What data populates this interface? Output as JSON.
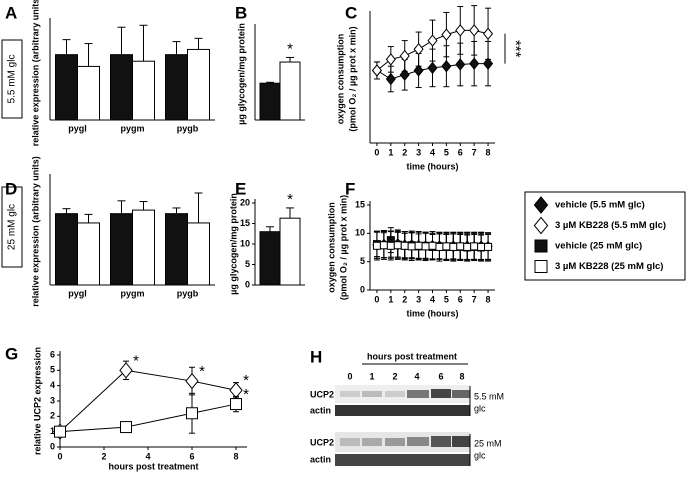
{
  "chart_data": [
    {
      "panel": "A",
      "type": "bar",
      "ylabel": "relative expression (arbitrary units)",
      "categories": [
        "pygl",
        "pygm",
        "pygb"
      ],
      "ylim": [
        0,
        1.5
      ],
      "series": [
        {
          "color": "#111111",
          "values": [
            1.0,
            1.0,
            1.0
          ],
          "errors": [
            0.23,
            0.42,
            0.2
          ]
        },
        {
          "color": "#ffffff",
          "values": [
            0.82,
            0.9,
            1.08
          ],
          "errors": [
            0.35,
            0.55,
            0.17
          ]
        }
      ]
    },
    {
      "panel": "B",
      "type": "bar",
      "ylabel": "µg glycogen/mg protein",
      "categories": [
        null
      ],
      "ylim": [
        0,
        100
      ],
      "series": [
        {
          "color": "#111111",
          "values": [
            40
          ],
          "errors": [
            1
          ]
        },
        {
          "color": "#ffffff",
          "values": [
            63
          ],
          "errors": [
            5
          ],
          "annotations": [
            "*"
          ]
        }
      ]
    },
    {
      "panel": "C",
      "type": "line",
      "ylabel": [
        "oxygen consumption",
        "(pmol O₂ / µg prot x min)"
      ],
      "xlabel": "time (hours)",
      "x": [
        0,
        1,
        2,
        3,
        4,
        5,
        6,
        7,
        8
      ],
      "xlim": [
        -0.5,
        8.5
      ],
      "xticks": [
        0,
        1,
        2,
        3,
        4,
        5,
        6,
        7,
        8
      ],
      "ylim": [
        0,
        15
      ],
      "annotation": "***",
      "series": [
        {
          "marker": "diamond",
          "color": "#111111",
          "values": [
            8.5,
            7.5,
            8.0,
            8.5,
            8.8,
            9.0,
            9.2,
            9.3,
            9.3
          ],
          "errors": [
            1.0,
            1.5,
            1.8,
            2.0,
            2.2,
            2.4,
            2.5,
            2.6,
            2.6
          ]
        },
        {
          "marker": "diamond",
          "color": "#ffffff",
          "values": [
            8.5,
            9.8,
            10.2,
            11.0,
            12.0,
            12.7,
            13.2,
            13.2,
            12.8
          ],
          "errors": [
            1.0,
            1.5,
            1.8,
            2.0,
            2.4,
            2.6,
            2.8,
            2.9,
            3.0
          ]
        }
      ]
    },
    {
      "panel": "D",
      "type": "bar",
      "ylabel": "relative expression (arbitrary units)",
      "categories": [
        "pygl",
        "pygm",
        "pygb"
      ],
      "ylim": [
        0,
        1.5
      ],
      "series": [
        {
          "color": "#111111",
          "values": [
            1.0,
            1.0,
            1.0
          ],
          "errors": [
            0.07,
            0.18,
            0.08
          ]
        },
        {
          "color": "#ffffff",
          "values": [
            0.87,
            1.05,
            0.87
          ],
          "errors": [
            0.12,
            0.12,
            0.42
          ]
        }
      ]
    },
    {
      "panel": "E",
      "type": "bar",
      "ylabel": "µg glycogen/mg protein",
      "categories": [
        null
      ],
      "ylim": [
        0,
        20
      ],
      "yticks": [
        0,
        5,
        10,
        15,
        20
      ],
      "series": [
        {
          "color": "#111111",
          "values": [
            13
          ],
          "errors": [
            1.2
          ]
        },
        {
          "color": "#ffffff",
          "values": [
            16.3
          ],
          "errors": [
            2.5
          ],
          "annotations": [
            "*"
          ]
        }
      ]
    },
    {
      "panel": "F",
      "type": "line",
      "ylabel": [
        "oxygen consumption",
        "(pmol O₂ / µg prot x min)"
      ],
      "xlabel": "time (hours)",
      "x": [
        0,
        0.5,
        1,
        1.5,
        2,
        2.5,
        3,
        3.5,
        4,
        4.5,
        5,
        5.5,
        6,
        6.5,
        7,
        7.5,
        8
      ],
      "xlim": [
        -0.5,
        8.5
      ],
      "xticks": [
        0,
        1,
        2,
        3,
        4,
        5,
        6,
        7,
        8
      ],
      "ylim": [
        0,
        15
      ],
      "yticks": [
        0,
        5,
        10,
        15
      ],
      "legend": "right",
      "series": [
        {
          "name": "vehicle (5.5 mM glc)",
          "marker": "diamond",
          "color": "#111111",
          "values": [
            7.9,
            8.0,
            8.1,
            7.9,
            8.0,
            7.8,
            7.9,
            7.8,
            7.7,
            7.8,
            7.7,
            7.6,
            7.7,
            7.6,
            7.7,
            7.6,
            7.7
          ],
          "errors": [
            2.3,
            2.3,
            2.3,
            2.3,
            2.3,
            2.3,
            2.3,
            2.3,
            2.3,
            2.3,
            2.3,
            2.3,
            2.3,
            2.3,
            2.3,
            2.3,
            2.3
          ]
        },
        {
          "name": "3 µM KB228  (5.5 mM glc)",
          "marker": "diamond",
          "color": "#ffffff",
          "values": [
            8.0,
            8.1,
            8.0,
            8.2,
            7.9,
            8.0,
            7.9,
            7.8,
            7.9,
            7.8,
            7.7,
            7.8,
            7.7,
            7.8,
            7.7,
            7.8,
            7.7
          ],
          "errors": [
            2.4,
            2.4,
            2.4,
            2.4,
            2.4,
            2.4,
            2.4,
            2.4,
            2.4,
            2.4,
            2.4,
            2.4,
            2.4,
            2.4,
            2.4,
            2.4,
            2.4
          ]
        },
        {
          "name": "vehicle (25 mM glc)",
          "marker": "square",
          "color": "#111111",
          "values": [
            8.1,
            7.9,
            8.8,
            8.0,
            7.8,
            7.9,
            7.7,
            7.8,
            7.6,
            7.7,
            7.6,
            7.7,
            7.6,
            7.5,
            7.6,
            7.5,
            7.6
          ],
          "errors": [
            2.2,
            2.2,
            2.2,
            2.2,
            2.2,
            2.2,
            2.2,
            2.2,
            2.2,
            2.2,
            2.2,
            2.2,
            2.2,
            2.2,
            2.2,
            2.2,
            2.2
          ]
        },
        {
          "name": "3 µM KB228 (25 mM glc)",
          "marker": "square",
          "color": "#ffffff",
          "values": [
            7.8,
            7.9,
            7.8,
            7.9,
            7.8,
            7.7,
            7.8,
            7.7,
            7.8,
            7.6,
            7.7,
            7.6,
            7.7,
            7.6,
            7.7,
            7.6,
            7.6
          ],
          "errors": [
            2.5,
            2.5,
            2.5,
            2.5,
            2.5,
            2.5,
            2.5,
            2.5,
            2.5,
            2.5,
            2.5,
            2.5,
            2.5,
            2.5,
            2.5,
            2.5,
            2.5
          ]
        }
      ]
    },
    {
      "panel": "G",
      "type": "line",
      "ylabel": "relative UCP2 expression",
      "xlabel": "hours post treatment",
      "x": [
        0,
        3,
        6,
        8
      ],
      "xlim": [
        0,
        8.5
      ],
      "xticks": [
        0,
        2,
        4,
        6,
        8
      ],
      "ylim": [
        0,
        6
      ],
      "yticks": [
        0,
        1,
        2,
        3,
        4,
        5,
        6
      ],
      "series": [
        {
          "marker": "diamond",
          "color": "#ffffff",
          "values": [
            1.0,
            5.0,
            4.3,
            3.7
          ],
          "errors": [
            0,
            0.6,
            0.9,
            0.5
          ],
          "annotations": [
            null,
            "*",
            "*",
            "*"
          ]
        },
        {
          "marker": "square",
          "color": "#ffffff",
          "values": [
            1.0,
            1.3,
            2.2,
            2.8
          ],
          "errors": [
            0,
            0.1,
            1.3,
            0.5
          ],
          "annotations": [
            null,
            null,
            null,
            "*"
          ]
        }
      ]
    }
  ],
  "row_labels": [
    "5.5 mM glc",
    "25 mM glc"
  ],
  "blot": {
    "panel": "H",
    "header": "hours post treatment",
    "lanes": [
      "0",
      "1",
      "2",
      "4",
      "6",
      "8"
    ],
    "blocks": [
      {
        "rows": [
          "UCP2",
          "actin"
        ],
        "condition": [
          "5.5 mM",
          "glc"
        ]
      },
      {
        "rows": [
          "UCP2",
          "actin"
        ],
        "condition": [
          "25 mM",
          "glc"
        ]
      }
    ]
  }
}
